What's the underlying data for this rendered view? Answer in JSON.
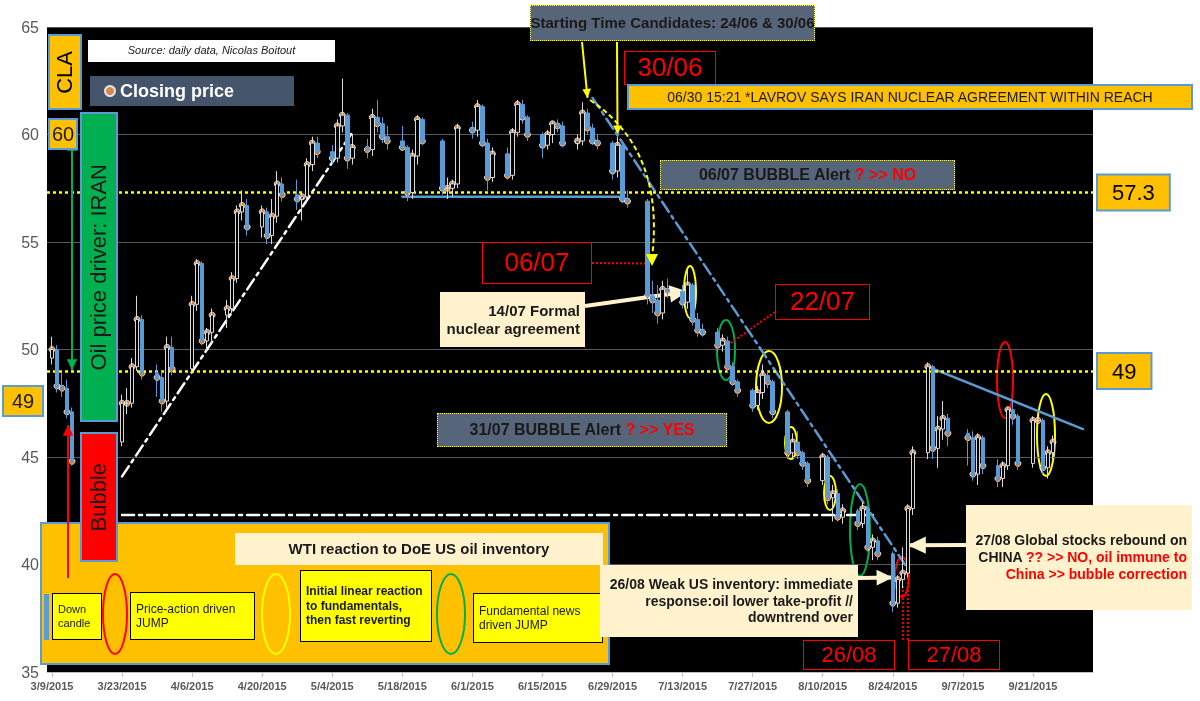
{
  "chart_data": {
    "type": "candlestick",
    "ylabel": "CLA",
    "annotations": [
      "Source: daily data, Nicolas Boitout",
      {
        "text": "Starting Time Candidates: 24/06 & 30/06",
        "x": "2015-06-24",
        "y": 61.7
      },
      {
        "text": "30/06",
        "x": "2015-06-30",
        "y": 60.0
      },
      "06/30 15:21 *LAVROV SAYS IRAN NUCLEAR AGREEMENT WITHIN REACH",
      "06/07 BUBBLE Alert",
      "? >> NO",
      {
        "text": "06/07",
        "x": "2015-07-06",
        "y": 54.0
      },
      {
        "text": "14/07  Formal nuclear agreement",
        "x": "2015-07-14",
        "y": 52.7
      },
      {
        "text": "22/07",
        "x": "2015-07-22",
        "y": 50.2
      },
      "31/07 BUBBLE Alert",
      "? >> YES",
      "Oil price driver: IRAN",
      "Bubble",
      "60",
      "49",
      "WTI reaction to DoE US oil inventory",
      "Down candle",
      "Price-action driven JUMP",
      "Initial linear reaction to fundamentals, then fast reverting",
      "Fundamental news driven JUMP",
      {
        "text": "26/08  Weak US inventory: immediate response:oil lower take-profit // downtrend over",
        "x": "2015-08-24",
        "y": 39.4
      },
      {
        "text": "27/08  Global stocks rebound on CHINA",
        "x": "2015-08-27",
        "y": 40.9
      },
      "?? >> NO, oil immune to China >> bubble correction",
      {
        "text": "26/08",
        "x": "2015-08-26",
        "y": 39.0
      },
      {
        "text": "27/08",
        "x": "2015-08-27",
        "y": 39.6
      }
    ],
    "x": [
      "2015-03-09",
      "2015-03-10",
      "2015-03-11",
      "2015-03-12",
      "2015-03-13",
      "2015-03-23",
      "2015-03-24",
      "2015-03-25",
      "2015-03-26",
      "2015-03-27",
      "2015-03-30",
      "2015-03-31",
      "2015-04-01",
      "2015-04-02",
      "2015-04-06",
      "2015-04-07",
      "2015-04-08",
      "2015-04-09",
      "2015-04-10",
      "2015-04-13",
      "2015-04-14",
      "2015-04-15",
      "2015-04-16",
      "2015-04-17",
      "2015-04-20",
      "2015-04-21",
      "2015-04-22",
      "2015-04-23",
      "2015-04-24",
      "2015-04-27",
      "2015-04-28",
      "2015-04-29",
      "2015-04-30",
      "2015-05-01",
      "2015-05-04",
      "2015-05-05",
      "2015-05-06",
      "2015-05-07",
      "2015-05-08",
      "2015-05-11",
      "2015-05-12",
      "2015-05-13",
      "2015-05-14",
      "2015-05-15",
      "2015-05-18",
      "2015-05-19",
      "2015-05-20",
      "2015-05-21",
      "2015-05-22",
      "2015-05-26",
      "2015-05-27",
      "2015-05-28",
      "2015-05-29",
      "2015-06-01",
      "2015-06-02",
      "2015-06-03",
      "2015-06-04",
      "2015-06-05",
      "2015-06-08",
      "2015-06-09",
      "2015-06-10",
      "2015-06-11",
      "2015-06-12",
      "2015-06-15",
      "2015-06-16",
      "2015-06-17",
      "2015-06-18",
      "2015-06-19",
      "2015-06-22",
      "2015-06-23",
      "2015-06-24",
      "2015-06-25",
      "2015-06-26",
      "2015-06-29",
      "2015-06-30",
      "2015-07-01",
      "2015-07-02",
      "2015-07-06",
      "2015-07-07",
      "2015-07-08",
      "2015-07-09",
      "2015-07-10",
      "2015-07-13",
      "2015-07-14",
      "2015-07-15",
      "2015-07-16",
      "2015-07-17",
      "2015-07-20",
      "2015-07-21",
      "2015-07-22",
      "2015-07-23",
      "2015-07-24",
      "2015-07-27",
      "2015-07-28",
      "2015-07-29",
      "2015-07-30",
      "2015-07-31",
      "2015-08-03",
      "2015-08-04",
      "2015-08-05",
      "2015-08-06",
      "2015-08-07",
      "2015-08-10",
      "2015-08-11",
      "2015-08-12",
      "2015-08-13",
      "2015-08-14",
      "2015-08-17",
      "2015-08-18",
      "2015-08-19",
      "2015-08-20",
      "2015-08-21",
      "2015-08-24",
      "2015-08-25",
      "2015-08-26",
      "2015-08-27",
      "2015-08-28",
      "2015-08-31",
      "2015-09-01",
      "2015-09-02",
      "2015-09-03",
      "2015-09-04",
      "2015-09-08",
      "2015-09-09",
      "2015-09-10",
      "2015-09-11",
      "2015-09-14",
      "2015-09-15",
      "2015-09-16",
      "2015-09-17",
      "2015-09-18",
      "2015-09-21",
      "2015-09-22",
      "2015-09-23",
      "2015-09-24",
      "2015-09-25"
    ],
    "ohlc": [
      [
        49.6,
        50.6,
        49.3,
        50.0
      ],
      [
        50.0,
        50.2,
        48.0,
        48.3
      ],
      [
        48.3,
        48.9,
        47.8,
        48.2
      ],
      [
        48.2,
        48.6,
        46.8,
        47.1
      ],
      [
        47.1,
        47.3,
        44.6,
        44.8
      ],
      [
        45.7,
        47.9,
        45.5,
        47.5
      ],
      [
        47.5,
        48.2,
        47.0,
        47.5
      ],
      [
        47.5,
        49.6,
        47.3,
        49.2
      ],
      [
        49.2,
        52.5,
        49.0,
        51.4
      ],
      [
        51.4,
        51.6,
        48.6,
        48.9
      ],
      [
        48.9,
        49.3,
        47.8,
        48.7
      ],
      [
        48.7,
        49.0,
        47.1,
        47.6
      ],
      [
        47.6,
        50.6,
        47.3,
        50.1
      ],
      [
        50.1,
        50.6,
        48.8,
        49.1
      ],
      [
        49.1,
        52.5,
        49.0,
        52.1
      ],
      [
        52.1,
        54.2,
        51.8,
        54.0
      ],
      [
        54.0,
        54.1,
        50.2,
        50.4
      ],
      [
        50.4,
        51.0,
        49.9,
        50.8
      ],
      [
        50.8,
        51.9,
        50.3,
        51.6
      ],
      [
        51.6,
        52.3,
        51.0,
        51.9
      ],
      [
        51.9,
        53.6,
        51.7,
        53.3
      ],
      [
        53.3,
        56.7,
        53.1,
        56.4
      ],
      [
        56.4,
        57.4,
        56.0,
        56.7
      ],
      [
        56.7,
        57.0,
        55.3,
        55.7
      ],
      [
        55.7,
        56.7,
        55.2,
        56.4
      ],
      [
        56.4,
        56.6,
        54.9,
        55.3
      ],
      [
        55.3,
        57.0,
        54.9,
        56.2
      ],
      [
        56.2,
        58.3,
        55.9,
        57.7
      ],
      [
        57.7,
        58.0,
        56.9,
        57.2
      ],
      [
        57.2,
        57.9,
        56.5,
        57.0
      ],
      [
        57.0,
        57.3,
        56.0,
        57.1
      ],
      [
        57.1,
        58.9,
        56.8,
        58.6
      ],
      [
        58.6,
        59.9,
        58.3,
        59.6
      ],
      [
        59.6,
        59.9,
        58.9,
        59.2
      ],
      [
        59.2,
        59.5,
        58.6,
        58.9
      ],
      [
        58.9,
        60.7,
        58.7,
        60.4
      ],
      [
        60.4,
        62.6,
        60.1,
        60.9
      ],
      [
        60.9,
        61.0,
        58.4,
        58.9
      ],
      [
        58.9,
        60.0,
        58.6,
        59.4
      ],
      [
        59.4,
        59.8,
        58.9,
        59.3
      ],
      [
        59.3,
        61.2,
        59.0,
        60.8
      ],
      [
        60.8,
        61.6,
        60.1,
        60.5
      ],
      [
        60.5,
        60.8,
        59.6,
        59.9
      ],
      [
        59.9,
        60.4,
        59.3,
        59.7
      ],
      [
        59.7,
        60.4,
        59.3,
        59.4
      ],
      [
        59.4,
        59.5,
        56.9,
        57.3
      ],
      [
        57.3,
        59.3,
        57.0,
        59.0
      ],
      [
        59.0,
        60.9,
        58.6,
        60.7
      ],
      [
        60.7,
        60.8,
        59.5,
        59.7
      ],
      [
        59.7,
        59.8,
        57.2,
        57.5
      ],
      [
        57.5,
        58.0,
        57.0,
        57.5
      ],
      [
        57.5,
        57.9,
        57.1,
        57.7
      ],
      [
        57.7,
        60.5,
        57.5,
        60.3
      ],
      [
        60.3,
        60.6,
        59.8,
        60.2
      ],
      [
        60.2,
        61.6,
        59.9,
        61.3
      ],
      [
        61.3,
        61.4,
        59.4,
        59.6
      ],
      [
        59.6,
        59.8,
        57.4,
        58.0
      ],
      [
        58.0,
        59.4,
        57.8,
        59.1
      ],
      [
        59.1,
        59.4,
        57.9,
        58.1
      ],
      [
        58.1,
        60.3,
        57.9,
        60.1
      ],
      [
        60.1,
        61.6,
        59.9,
        61.4
      ],
      [
        61.4,
        61.6,
        60.5,
        60.8
      ],
      [
        60.8,
        60.9,
        59.7,
        60.0
      ],
      [
        60.0,
        60.1,
        58.9,
        59.5
      ],
      [
        59.5,
        60.2,
        59.3,
        60.0
      ],
      [
        60.0,
        60.6,
        59.6,
        60.5
      ],
      [
        60.5,
        60.7,
        60.1,
        60.4
      ],
      [
        60.4,
        60.6,
        59.4,
        59.6
      ],
      [
        59.6,
        60.0,
        59.3,
        59.7
      ],
      [
        59.7,
        61.5,
        59.5,
        61.0
      ],
      [
        61.0,
        61.2,
        60.0,
        60.3
      ],
      [
        60.3,
        60.5,
        59.5,
        59.7
      ],
      [
        59.7,
        60.0,
        59.3,
        59.6
      ],
      [
        59.6,
        59.7,
        57.9,
        58.3
      ],
      [
        58.3,
        59.9,
        58.0,
        59.5
      ],
      [
        59.5,
        59.6,
        56.8,
        57.0
      ],
      [
        57.0,
        57.4,
        56.6,
        56.9
      ],
      [
        56.9,
        57.0,
        52.1,
        52.5
      ],
      [
        52.5,
        53.2,
        51.7,
        52.3
      ],
      [
        52.3,
        53.0,
        51.2,
        51.7
      ],
      [
        51.7,
        53.2,
        51.4,
        52.8
      ],
      [
        52.8,
        53.3,
        52.4,
        52.7
      ],
      [
        52.7,
        53.0,
        51.9,
        52.2
      ],
      [
        52.2,
        53.8,
        51.9,
        53.0
      ],
      [
        53.0,
        53.1,
        51.1,
        51.4
      ],
      [
        51.4,
        51.7,
        50.6,
        50.9
      ],
      [
        50.9,
        51.2,
        50.6,
        50.8
      ],
      [
        50.8,
        51.0,
        49.9,
        50.2
      ],
      [
        50.2,
        50.7,
        49.9,
        50.4
      ],
      [
        50.4,
        50.6,
        48.9,
        49.2
      ],
      [
        49.2,
        49.4,
        48.3,
        48.5
      ],
      [
        48.5,
        48.6,
        47.8,
        48.1
      ],
      [
        48.1,
        48.2,
        47.1,
        47.4
      ],
      [
        47.4,
        48.3,
        47.2,
        48.0
      ],
      [
        48.0,
        49.3,
        47.7,
        48.8
      ],
      [
        48.8,
        49.0,
        48.2,
        48.5
      ],
      [
        48.5,
        48.6,
        46.8,
        47.1
      ],
      [
        47.1,
        47.2,
        44.9,
        45.2
      ],
      [
        45.2,
        46.1,
        44.9,
        45.7
      ],
      [
        45.7,
        46.2,
        44.9,
        45.2
      ],
      [
        45.2,
        45.3,
        44.4,
        44.7
      ],
      [
        44.7,
        44.8,
        43.6,
        43.9
      ],
      [
        43.9,
        45.2,
        43.7,
        45.0
      ],
      [
        45.0,
        45.1,
        42.8,
        43.1
      ],
      [
        43.1,
        43.7,
        42.0,
        43.3
      ],
      [
        43.3,
        43.5,
        42.0,
        42.2
      ],
      [
        42.2,
        42.8,
        41.9,
        42.5
      ],
      [
        42.5,
        42.6,
        41.6,
        41.9
      ],
      [
        41.9,
        42.9,
        41.7,
        42.6
      ],
      [
        42.6,
        42.7,
        40.6,
        40.8
      ],
      [
        40.8,
        41.4,
        40.2,
        41.1
      ],
      [
        41.1,
        41.3,
        40.2,
        40.5
      ],
      [
        40.5,
        40.6,
        37.8,
        38.2
      ],
      [
        38.2,
        39.5,
        38.0,
        39.3
      ],
      [
        39.3,
        40.8,
        38.9,
        39.6
      ],
      [
        39.6,
        42.8,
        39.4,
        42.6
      ],
      [
        42.6,
        45.5,
        42.3,
        45.2
      ],
      [
        45.2,
        49.4,
        44.9,
        49.2
      ],
      [
        49.2,
        49.3,
        44.9,
        45.4
      ],
      [
        45.4,
        46.9,
        44.5,
        46.3
      ],
      [
        46.3,
        47.6,
        45.8,
        46.8
      ],
      [
        46.8,
        47.0,
        45.5,
        46.1
      ],
      [
        46.1,
        46.3,
        44.6,
        45.9
      ],
      [
        45.9,
        46.2,
        43.9,
        44.2
      ],
      [
        44.2,
        46.1,
        43.7,
        45.9
      ],
      [
        45.9,
        46.0,
        44.2,
        44.6
      ],
      [
        44.6,
        44.9,
        43.6,
        44.0
      ],
      [
        44.0,
        44.8,
        43.6,
        44.6
      ],
      [
        44.6,
        47.3,
        44.4,
        47.2
      ],
      [
        47.2,
        47.6,
        46.5,
        46.9
      ],
      [
        46.9,
        47.0,
        44.4,
        44.7
      ],
      [
        44.7,
        46.9,
        44.5,
        46.7
      ],
      [
        46.7,
        47.0,
        45.7,
        46.7
      ],
      [
        46.7,
        46.8,
        44.2,
        44.5
      ],
      [
        44.5,
        45.5,
        44.0,
        45.2
      ],
      [
        45.2,
        46.0,
        44.9,
        45.7
      ]
    ],
    "series": [
      {
        "name": "Closing price",
        "type": "scatter",
        "color": "#f79646",
        "marker": "circle",
        "values": [
          50.0,
          48.3,
          48.2,
          47.1,
          44.8,
          47.5,
          47.5,
          49.2,
          51.4,
          48.9,
          48.7,
          47.6,
          50.1,
          49.1,
          52.1,
          54.0,
          50.4,
          50.8,
          51.6,
          51.9,
          53.3,
          56.4,
          56.7,
          55.7,
          56.4,
          55.3,
          56.2,
          57.7,
          57.2,
          57.0,
          57.1,
          58.6,
          59.6,
          59.2,
          58.9,
          60.4,
          60.9,
          58.9,
          59.4,
          59.3,
          60.8,
          60.5,
          59.9,
          59.7,
          59.4,
          57.3,
          59.0,
          60.7,
          59.7,
          57.5,
          57.5,
          57.7,
          60.3,
          60.2,
          61.3,
          59.6,
          58.0,
          59.1,
          58.1,
          60.1,
          61.4,
          60.8,
          60.0,
          59.5,
          60.0,
          60.5,
          60.4,
          59.6,
          59.7,
          61.0,
          60.3,
          59.7,
          59.6,
          58.3,
          59.5,
          57.0,
          56.9,
          52.5,
          52.3,
          51.7,
          52.8,
          52.7,
          52.2,
          53.0,
          51.4,
          50.9,
          50.8,
          50.2,
          50.4,
          49.2,
          48.5,
          48.1,
          47.4,
          48.0,
          48.8,
          48.5,
          47.1,
          45.2,
          45.7,
          45.2,
          44.7,
          43.9,
          45.0,
          43.1,
          43.3,
          42.2,
          42.5,
          41.9,
          42.6,
          40.8,
          41.1,
          40.5,
          38.2,
          39.3,
          39.6,
          42.6,
          45.2,
          49.2,
          45.4,
          46.3,
          46.8,
          46.1,
          45.9,
          44.2,
          45.9,
          44.6,
          44.0,
          44.6,
          47.2,
          46.9,
          44.7,
          46.7,
          46.7,
          44.5,
          45.2,
          45.7
        ]
      },
      {
        "type": "line",
        "color": "#ffffff",
        "line_style": "dashed",
        "x": [
          "2015-03-23",
          "2015-05-08"
        ],
        "values": [
          44.1,
          60.1
        ]
      },
      {
        "type": "line",
        "color": "#ffffff",
        "line_style": "dashed",
        "x": [
          "2015-03-23",
          "2015-08-20"
        ],
        "values": [
          42.3,
          42.3
        ]
      },
      {
        "type": "line",
        "color": "#5b9bd5",
        "line_style": "solid",
        "x": [
          "2015-05-18",
          "2015-07-01"
        ],
        "values": [
          57.1,
          57.1
        ]
      },
      {
        "type": "line",
        "color": "#5b9bd5",
        "line_style": "dashed",
        "x": [
          "2015-06-25",
          "2015-08-27"
        ],
        "values": [
          61.7,
          39.8
        ]
      },
      {
        "type": "line",
        "color": "#5b9bd5",
        "line_style": "solid",
        "x": [
          "2015-08-31",
          "2015-10-01"
        ],
        "values": [
          49.2,
          46.3
        ]
      }
    ],
    "ref_lines": [
      {
        "axis": "y",
        "value": 57.3,
        "label": "57.3",
        "color": "#ffff00",
        "line_style": "dotted"
      },
      {
        "axis": "y",
        "value": 49,
        "label": "49",
        "color": "#ffff00",
        "line_style": "dotted"
      }
    ],
    "xlim": [
      "2015-03-08",
      "2015-10-03"
    ],
    "xticks": [
      {
        "value": "2015-03-09",
        "label": "3/9/2015"
      },
      {
        "value": "2015-03-23",
        "label": "3/23/2015"
      },
      {
        "value": "2015-04-06",
        "label": "4/6/2015"
      },
      {
        "value": "2015-04-20",
        "label": "4/20/2015"
      },
      {
        "value": "2015-05-04",
        "label": "5/4/2015"
      },
      {
        "value": "2015-05-18",
        "label": "5/18/2015"
      },
      {
        "value": "2015-06-01",
        "label": "6/1/2015"
      },
      {
        "value": "2015-06-15",
        "label": "6/15/2015"
      },
      {
        "value": "2015-06-29",
        "label": "6/29/2015"
      },
      {
        "value": "2015-07-13",
        "label": "7/13/2015"
      },
      {
        "value": "2015-07-27",
        "label": "7/27/2015"
      },
      {
        "value": "2015-08-10",
        "label": "8/10/2015"
      },
      {
        "value": "2015-08-24",
        "label": "8/24/2015"
      },
      {
        "value": "2015-09-07",
        "label": "9/7/2015"
      },
      {
        "value": "2015-09-21",
        "label": "9/21/2015"
      }
    ],
    "ylim": [
      35,
      65
    ],
    "yticks": [
      35,
      40,
      45,
      50,
      55,
      60,
      65
    ],
    "grid": "y",
    "legend": "top left"
  }
}
